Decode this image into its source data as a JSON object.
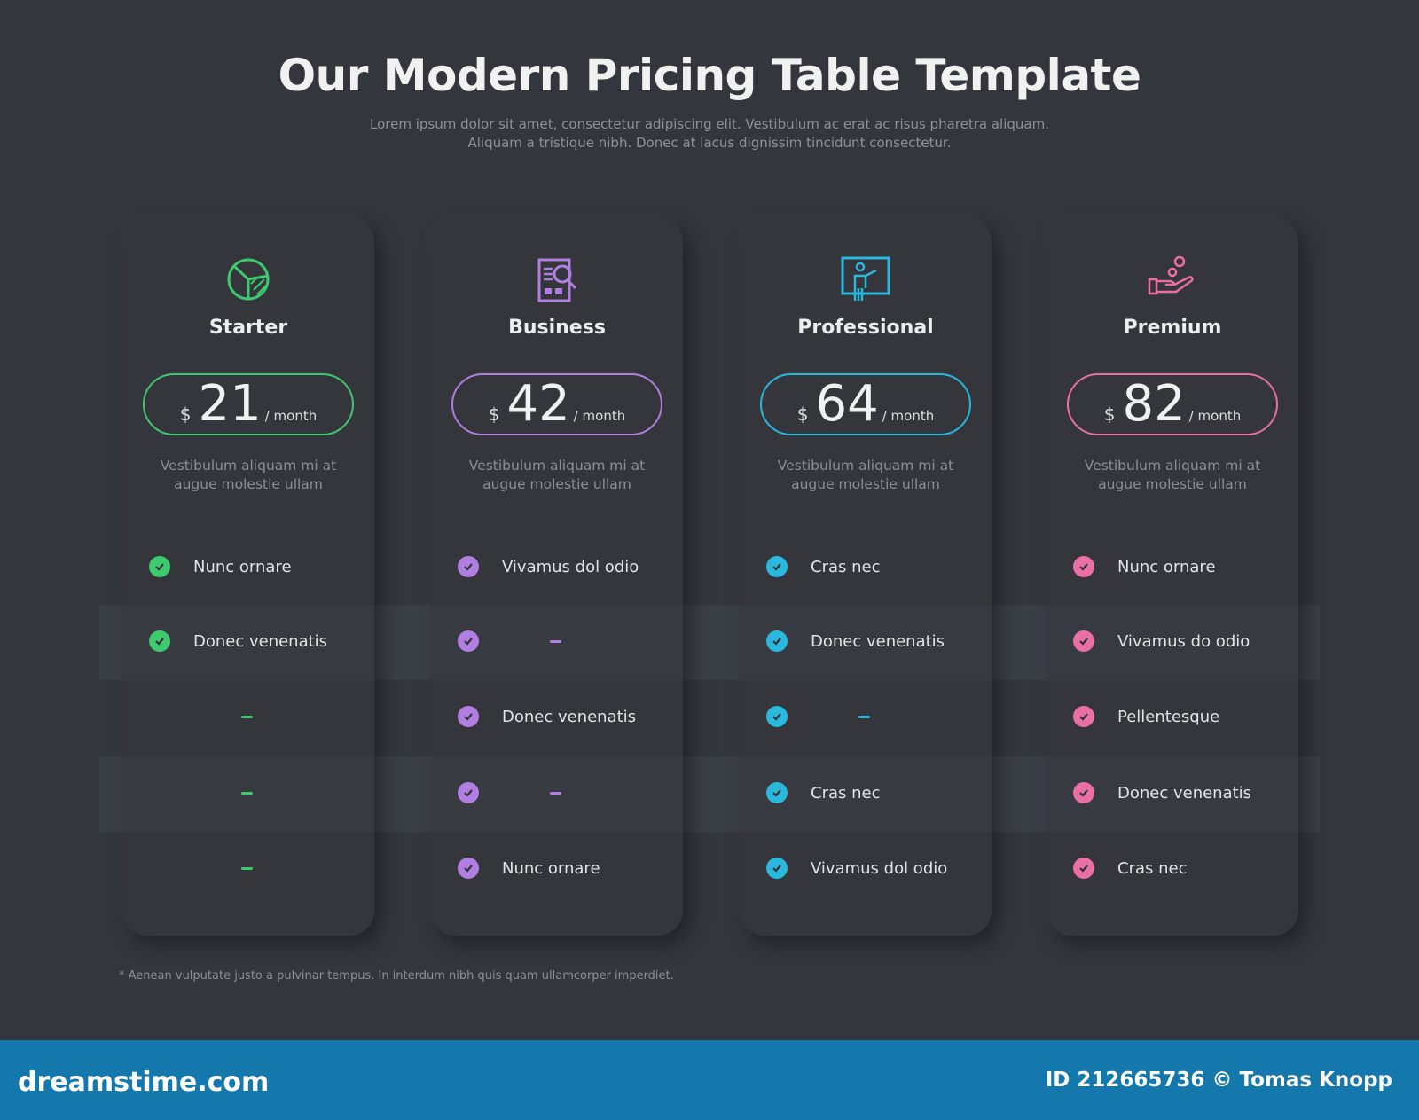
{
  "header": {
    "title": "Our Modern Pricing Table Template",
    "subtitle": "Lorem ipsum dolor sit amet, consectetur adipiscing elit. Vestibulum ac erat ac risus pharetra aliquam. Aliquam a tristique nibh. Donec at lacus dignissim tincidunt consectetur."
  },
  "plans": [
    {
      "name": "Starter",
      "icon": "pie-chart-icon",
      "color": "#3ec96e",
      "currency": "$",
      "price": "21",
      "period": "/ month",
      "description": "Vestibulum aliquam mi at augue molestie ullam",
      "features": [
        {
          "included": true,
          "label": "Nunc ornare"
        },
        {
          "included": true,
          "label": "Donec venenatis"
        },
        {
          "included": false,
          "label": ""
        },
        {
          "included": false,
          "label": ""
        },
        {
          "included": false,
          "label": ""
        }
      ]
    },
    {
      "name": "Business",
      "icon": "financial-report-icon",
      "color": "#b07fe0",
      "currency": "$",
      "price": "42",
      "period": "/ month",
      "description": "Vestibulum aliquam mi at augue molestie ullam",
      "features": [
        {
          "included": true,
          "label": "Vivamus dol odio"
        },
        {
          "included": true,
          "label": ""
        },
        {
          "included": true,
          "label": "Donec venenatis"
        },
        {
          "included": true,
          "label": ""
        },
        {
          "included": true,
          "label": "Nunc ornare"
        }
      ]
    },
    {
      "name": "Professional",
      "icon": "presentation-icon",
      "color": "#2ab8dc",
      "currency": "$",
      "price": "64",
      "period": "/ month",
      "description": "Vestibulum aliquam mi at augue molestie ullam",
      "features": [
        {
          "included": true,
          "label": "Cras nec"
        },
        {
          "included": true,
          "label": "Donec venenatis"
        },
        {
          "included": true,
          "label": ""
        },
        {
          "included": true,
          "label": "Cras nec"
        },
        {
          "included": true,
          "label": "Vivamus dol odio"
        }
      ]
    },
    {
      "name": "Premium",
      "icon": "hand-coins-icon",
      "color": "#ea6fa4",
      "currency": "$",
      "price": "82",
      "period": "/ month",
      "description": "Vestibulum aliquam mi at augue molestie ullam",
      "features": [
        {
          "included": true,
          "label": "Nunc ornare"
        },
        {
          "included": true,
          "label": "Vivamus do odio"
        },
        {
          "included": true,
          "label": "Pellentesque"
        },
        {
          "included": true,
          "label": "Donec venenatis"
        },
        {
          "included": true,
          "label": "Cras nec"
        }
      ]
    }
  ],
  "footnote": "* Aenean vulputate justo a pulvinar tempus. In interdum nibh quis quam ullamcorper imperdiet.",
  "footer": {
    "logo": "dreamstime.com",
    "credit": "ID 212665736 © Tomas Knopp"
  }
}
